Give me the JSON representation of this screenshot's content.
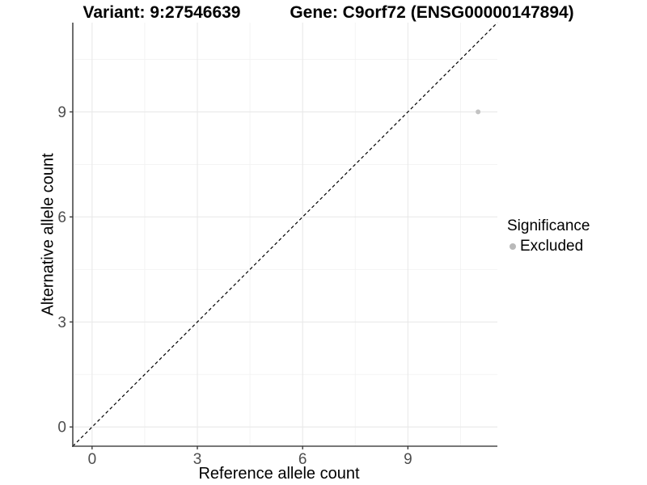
{
  "chart_data": {
    "type": "scatter",
    "titles": [
      "Variant: 9:27546639",
      "Gene: C9orf72 (ENSG00000147894)"
    ],
    "xlabel": "Reference allele count",
    "ylabel": "Alternative allele count",
    "xlim": [
      -0.55,
      11.55
    ],
    "ylim": [
      -0.55,
      11.55
    ],
    "x_ticks": [
      0,
      3,
      6,
      9
    ],
    "y_ticks": [
      0,
      3,
      6,
      9
    ],
    "x_minor_gridlines": [
      1.5,
      4.5,
      7.5,
      10.5
    ],
    "y_minor_gridlines": [
      1.5,
      4.5,
      7.5,
      10.5
    ],
    "grid": "major and minor, light gray on white panel",
    "points": [
      {
        "x": 11,
        "y": 9,
        "series": "Excluded"
      }
    ],
    "identity_line": {
      "equation": "y = x",
      "style": "dashed",
      "color": "#000000"
    },
    "legend": {
      "title": "Significance",
      "position": "right",
      "items": [
        {
          "label": "Excluded",
          "color": "#b9b9b9"
        }
      ]
    },
    "style": {
      "point_color": "#c3c3c3",
      "point_radius": 3,
      "legend_dot_color": "#b9b9b9",
      "axis_line_color": "#4a4a4a",
      "tick_mark_color": "#333333",
      "tick_label_color": "#4d4d4d",
      "grid_major_color": "#e9e9e9",
      "grid_minor_color": "#f2f2f2",
      "panel_background": "#ffffff"
    }
  }
}
